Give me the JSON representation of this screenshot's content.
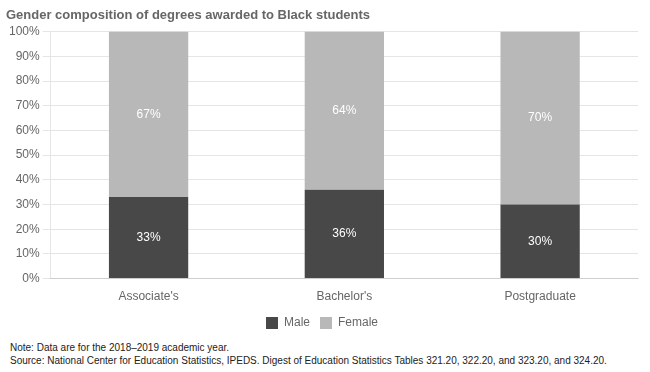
{
  "chart_data": {
    "type": "bar",
    "title": "Gender composition of degrees awarded to Black students",
    "categories": [
      "Associate's",
      "Bachelor's",
      "Postgraduate"
    ],
    "series": [
      {
        "name": "Male",
        "color": "#484848",
        "values": [
          33,
          36,
          30
        ],
        "value_labels": [
          "33%",
          "36%",
          "30%"
        ]
      },
      {
        "name": "Female",
        "color": "#b8b8b8",
        "values": [
          67,
          64,
          70
        ],
        "value_labels": [
          "67%",
          "64%",
          "70%"
        ]
      }
    ],
    "stacked": true,
    "data_labels": true,
    "ylim": [
      0,
      100
    ],
    "yticks": [
      {
        "value": 0,
        "label": "0%"
      },
      {
        "value": 10,
        "label": "10%"
      },
      {
        "value": 20,
        "label": "20%"
      },
      {
        "value": 30,
        "label": "30%"
      },
      {
        "value": 40,
        "label": "40%"
      },
      {
        "value": 50,
        "label": "50%"
      },
      {
        "value": 60,
        "label": "60%"
      },
      {
        "value": 70,
        "label": "70%"
      },
      {
        "value": 80,
        "label": "80%"
      },
      {
        "value": 90,
        "label": "90%"
      },
      {
        "value": 100,
        "label": "100%"
      }
    ],
    "grid": true,
    "legend": "bottom",
    "annotations": [
      "Note: Data are for the 2018–2019 academic year.",
      "Source: National Center for Education Statistics, IPEDS. Digest of Education Statistics Tables 321.20, 322.20, and 323.20, and 324.20."
    ]
  }
}
